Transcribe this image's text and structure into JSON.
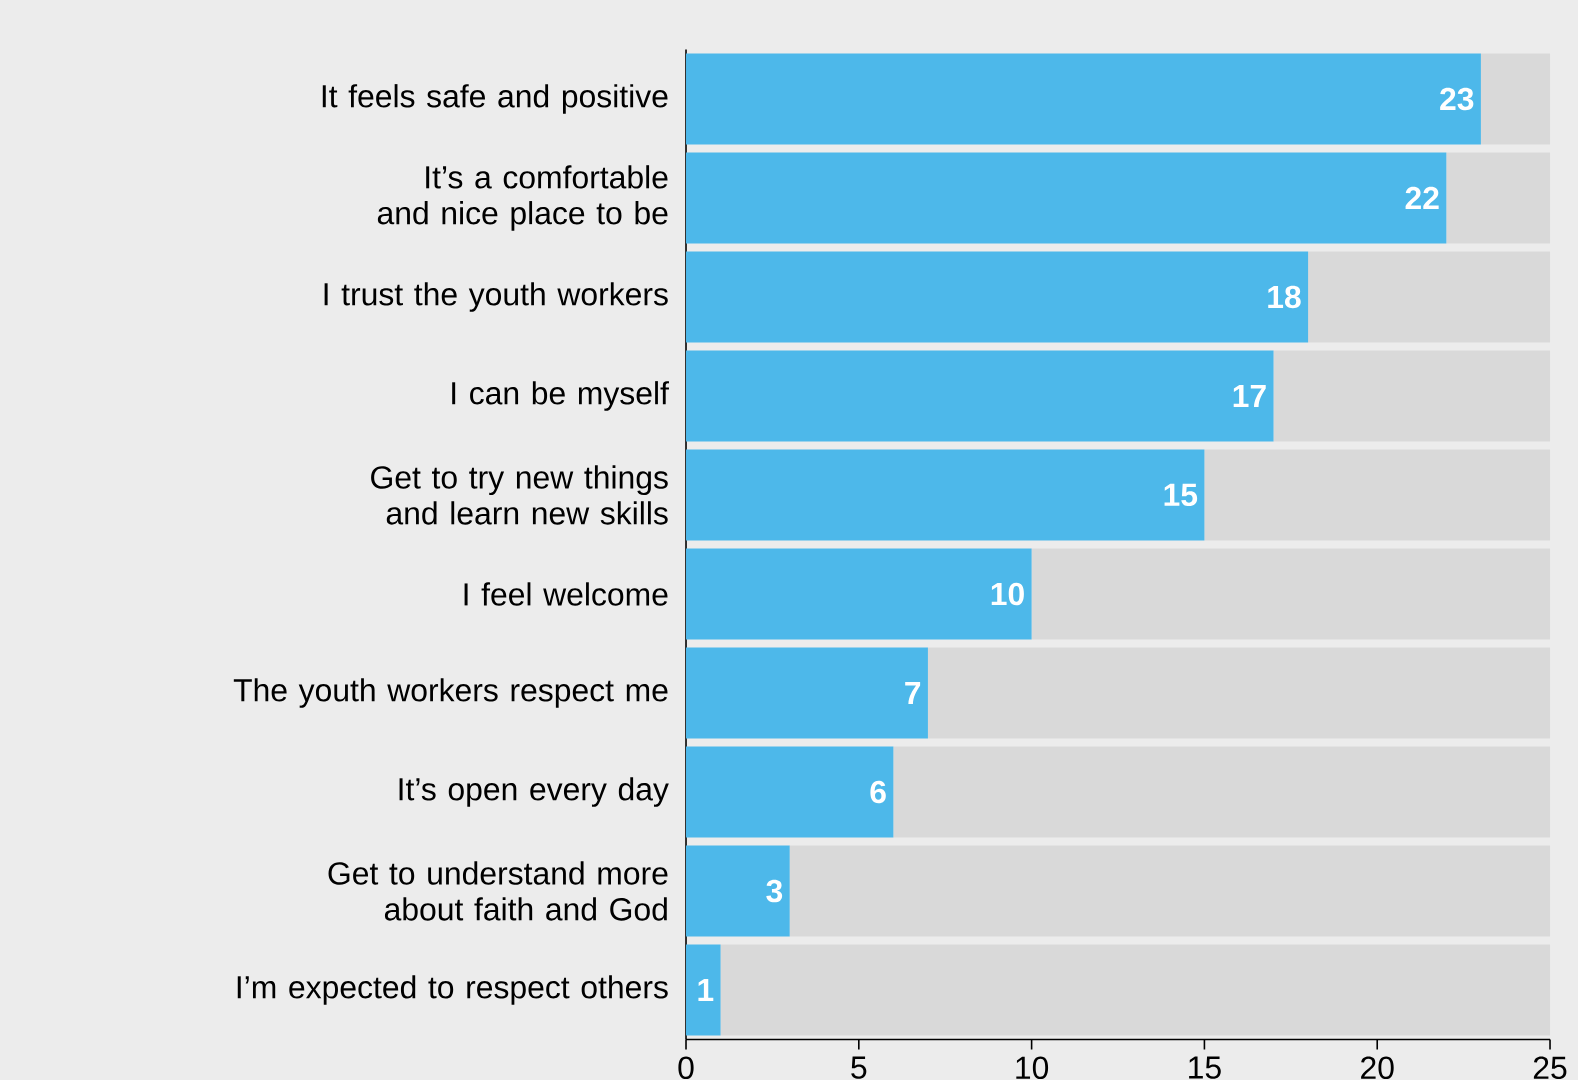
{
  "chart_data": {
    "type": "bar",
    "orientation": "horizontal",
    "stacked": true,
    "categories": [
      "It feels safe and positive",
      "It’s a comfortable and nice place to be",
      "I trust the youth workers",
      "I can be myself",
      "Get to try new things and learn new skills",
      "I feel welcome",
      "The youth workers respect me",
      "It’s open every day",
      "Get to understand more about faith and God",
      "I’m expected to respect others"
    ],
    "series": [
      {
        "color": "#4db8ea",
        "values": [
          23,
          22,
          18,
          17,
          15,
          10,
          7,
          6,
          3,
          1
        ],
        "value_labels": [
          "23",
          "22",
          "18",
          "17",
          "15",
          "10",
          "7",
          "6",
          "3",
          "1"
        ]
      },
      {
        "color": "#d9d9d9",
        "values": [
          2,
          3,
          7,
          8,
          10,
          15,
          18,
          19,
          22,
          24
        ]
      }
    ],
    "xlim": [
      0,
      25
    ],
    "xticks": [
      0,
      5,
      10,
      15,
      20,
      25
    ],
    "grid": false
  }
}
